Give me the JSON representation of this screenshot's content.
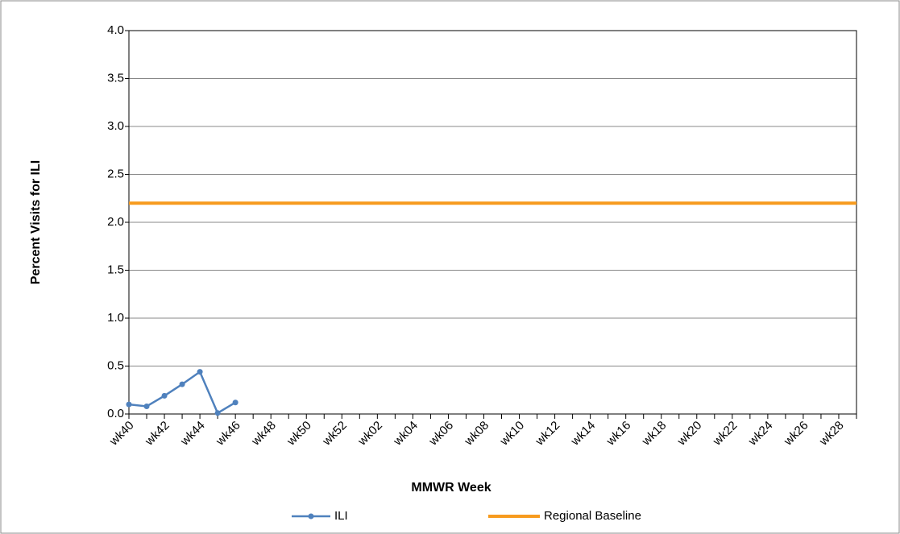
{
  "chart_data": {
    "type": "line",
    "x_label": "MMWR Week",
    "y_label": "Percent Visits for ILI",
    "categories": [
      "wk40",
      null,
      "wk42",
      null,
      "wk44",
      null,
      "wk46",
      null,
      "wk48",
      null,
      "wk50",
      null,
      "wk52",
      null,
      "wk02",
      null,
      "wk04",
      null,
      "wk06",
      null,
      "wk08",
      null,
      "wk10",
      null,
      "wk12",
      null,
      "wk14",
      null,
      "wk16",
      null,
      "wk18",
      null,
      "wk20",
      null,
      "wk22",
      null,
      "wk24",
      null,
      "wk26",
      null,
      "wk28",
      null
    ],
    "series": [
      {
        "name": "ILI",
        "color": "#4f81bd",
        "marker": true,
        "values": [
          0.1,
          0.08,
          0.19,
          0.31,
          0.44,
          0.01,
          0.12,
          null,
          null,
          null,
          null,
          null,
          null,
          null,
          null,
          null,
          null,
          null,
          null,
          null,
          null,
          null,
          null,
          null,
          null,
          null,
          null,
          null,
          null,
          null,
          null,
          null,
          null,
          null,
          null,
          null,
          null,
          null,
          null,
          null,
          null,
          null
        ]
      },
      {
        "name": "Regional Baseline",
        "color": "#f79b1e",
        "marker": false,
        "values": [
          2.2,
          2.2,
          2.2,
          2.2,
          2.2,
          2.2,
          2.2,
          2.2,
          2.2,
          2.2,
          2.2,
          2.2,
          2.2,
          2.2,
          2.2,
          2.2,
          2.2,
          2.2,
          2.2,
          2.2,
          2.2,
          2.2,
          2.2,
          2.2,
          2.2,
          2.2,
          2.2,
          2.2,
          2.2,
          2.2,
          2.2,
          2.2,
          2.2,
          2.2,
          2.2,
          2.2,
          2.2,
          2.2,
          2.2,
          2.2,
          2.2,
          2.2
        ]
      }
    ],
    "ylim": [
      0,
      4
    ],
    "yticks": [
      {
        "value": 0,
        "label": "0.0"
      },
      0.5,
      {
        "value": 1,
        "label": "1.0"
      },
      1.5,
      {
        "value": 2,
        "label": "2.0"
      },
      2.5,
      {
        "value": 3,
        "label": "3.0"
      },
      3.5,
      {
        "value": 4,
        "label": "4.0"
      }
    ],
    "grid": true,
    "legend": "bottom"
  }
}
